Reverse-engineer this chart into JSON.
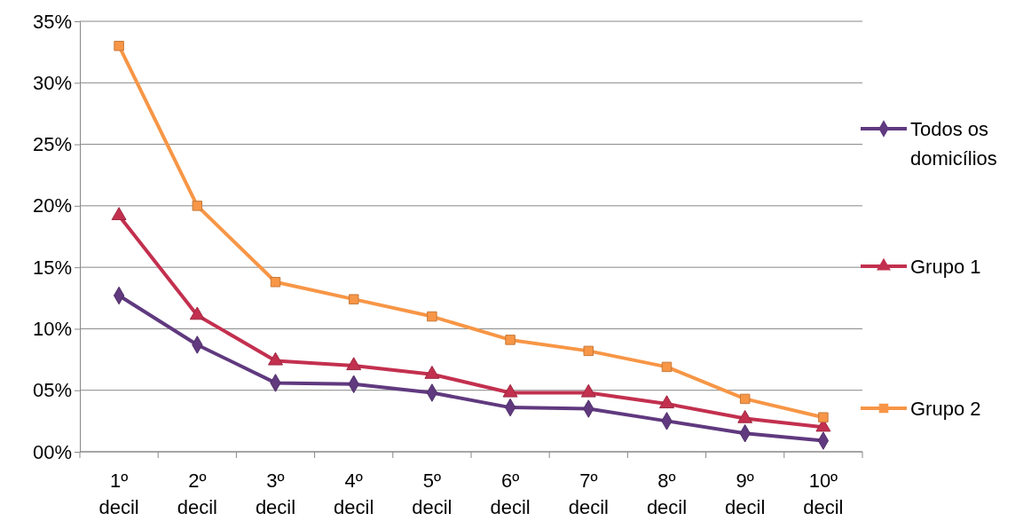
{
  "chart_data": {
    "type": "line",
    "categories": [
      "1º decil",
      "2º decil",
      "3º decil",
      "4º decil",
      "5º decil",
      "6º decil",
      "7º decil",
      "8º decil",
      "9º decil",
      "10º decil"
    ],
    "series": [
      {
        "name": "Todos os domicílios",
        "color": "#60397f",
        "marker": "diamond",
        "values": [
          12.7,
          8.7,
          5.6,
          5.5,
          4.8,
          3.6,
          3.5,
          2.5,
          1.5,
          0.9
        ]
      },
      {
        "name": "Grupo 1",
        "color": "#c3304f",
        "marker": "triangle",
        "values": [
          19.2,
          11.1,
          7.4,
          7.0,
          6.3,
          4.8,
          4.8,
          3.9,
          2.7,
          2.0
        ]
      },
      {
        "name": "Grupo 2",
        "color": "#f79646",
        "marker": "square",
        "values": [
          33.0,
          20.0,
          13.8,
          12.4,
          11.0,
          9.1,
          8.2,
          6.9,
          4.3,
          2.8
        ]
      }
    ],
    "ylim": [
      0,
      35
    ],
    "yticks": [
      {
        "value": 0,
        "label": "00%"
      },
      {
        "value": 5,
        "label": "05%"
      },
      {
        "value": 10,
        "label": "10%"
      },
      {
        "value": 15,
        "label": "15%"
      },
      {
        "value": 20,
        "label": "20%"
      },
      {
        "value": 25,
        "label": "25%"
      },
      {
        "value": 30,
        "label": "30%"
      },
      {
        "value": 35,
        "label": "35%"
      }
    ],
    "grid": "y",
    "legend": "right",
    "line_style": "solid"
  }
}
